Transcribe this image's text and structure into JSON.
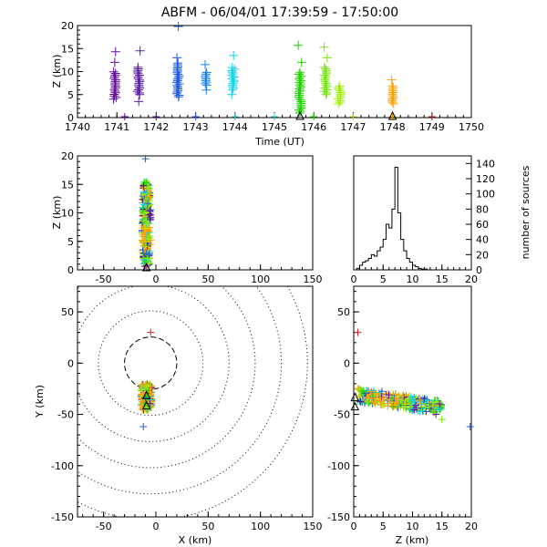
{
  "chart_data": [
    {
      "panel": "time-height",
      "type": "scatter",
      "title": "ABFM - 06/04/01 17:39:59 - 17:50:00",
      "xlabel": "Time (UT)",
      "ylabel": "Z (km)",
      "xlim": [
        1740,
        1750
      ],
      "ylim": [
        0,
        20
      ],
      "xticks": [
        "1740",
        "1741",
        "1742",
        "1743",
        "1744",
        "1745",
        "1746",
        "1747",
        "1748",
        "1749",
        "1750"
      ],
      "yticks": [
        "0",
        "5",
        "10",
        "15",
        "20"
      ],
      "clusters": [
        {
          "t": 1740.95,
          "zmin": 4.0,
          "zmax": 10.0,
          "outliers": [
            14.3,
            12.0
          ],
          "color": "#66119a"
        },
        {
          "t": 1741.55,
          "zmin": 5.0,
          "zmax": 11.0,
          "outliers": [
            14.5,
            3.5
          ],
          "color": "#5a1ea6"
        },
        {
          "t": 1742.55,
          "zmin": 4.5,
          "zmax": 12.0,
          "outliers": [
            19.8,
            13.0
          ],
          "color": "#1e5ae6"
        },
        {
          "t": 1743.25,
          "zmin": 7.0,
          "zmax": 10.0,
          "outliers": [
            11.5,
            6.0
          ],
          "color": "#1e82e6"
        },
        {
          "t": 1743.95,
          "zmin": 6.0,
          "zmax": 11.0,
          "outliers": [
            13.5,
            5.0
          ],
          "color": "#14d2e6"
        },
        {
          "t": 1745.65,
          "zmin": 1.0,
          "zmax": 10.0,
          "outliers": [
            15.7,
            12.0
          ],
          "color": "#1ed200"
        },
        {
          "t": 1746.3,
          "zmin": 5.0,
          "zmax": 11.0,
          "outliers": [
            15.3,
            13.0
          ],
          "color": "#78e614"
        },
        {
          "t": 1746.65,
          "zmin": 3.0,
          "zmax": 7.0,
          "outliers": [],
          "color": "#a0f000"
        },
        {
          "t": 1748.0,
          "zmin": 3.0,
          "zmax": 7.0,
          "outliers": [
            8.2
          ],
          "color": "#ffa000"
        }
      ],
      "ground_marks": [
        {
          "t": 1741.2,
          "color": "#66119a"
        },
        {
          "t": 1742.0,
          "color": "#66119a"
        },
        {
          "t": 1743.0,
          "color": "#1e5ae6"
        },
        {
          "t": 1744.0,
          "color": "#14d2e6"
        },
        {
          "t": 1745.0,
          "color": "#14d2e6"
        },
        {
          "t": 1746.0,
          "color": "#1ed200"
        },
        {
          "t": 1747.0,
          "color": "#a0f000"
        },
        {
          "t": 1748.0,
          "color": "#ffa000"
        },
        {
          "t": 1749.0,
          "color": "#e61e1e"
        }
      ],
      "triangles": [
        1745.65,
        1748.0
      ]
    },
    {
      "panel": "x-z",
      "type": "scatter",
      "xlim": [
        -75,
        150
      ],
      "ylim": [
        0,
        20
      ],
      "ylabel": "Z (km)",
      "xticks": [
        "-50",
        "0",
        "50",
        "100",
        "150"
      ],
      "yticks": [
        "0",
        "5",
        "10",
        "15",
        "20"
      ],
      "center_x": -9,
      "points_summary": "dense vertical column of sources at x ≈ -9 km from z ≈ 0.5 to 16 km, outlier at z ≈ 19.5 km",
      "triangle_x": -9
    },
    {
      "panel": "histogram",
      "type": "bar",
      "ylabel": "number of sources",
      "xlim": [
        0,
        20
      ],
      "ylim": [
        0,
        150
      ],
      "xticks": [
        "0",
        "5",
        "10",
        "15",
        "20"
      ],
      "yticks": [
        "0",
        "20",
        "40",
        "60",
        "80",
        "100",
        "120",
        "140"
      ],
      "bin_width": 0.5,
      "values": [
        0,
        2,
        6,
        10,
        12,
        15,
        20,
        18,
        25,
        30,
        40,
        60,
        55,
        80,
        135,
        75,
        40,
        25,
        15,
        10,
        6,
        4,
        2,
        1,
        1,
        0,
        0,
        0,
        0,
        0,
        0,
        0,
        0,
        0,
        0,
        0,
        0,
        0,
        0,
        0
      ]
    },
    {
      "panel": "plan-view",
      "type": "scatter",
      "xlabel": "X (km)",
      "ylabel": "Y (km)",
      "xlim": [
        -75,
        150
      ],
      "ylim": [
        -150,
        75
      ],
      "xticks": [
        "-50",
        "0",
        "50",
        "100",
        "150"
      ],
      "yticks": [
        "-150",
        "-100",
        "-50",
        "0",
        "50"
      ],
      "range_rings_km": [
        25,
        50,
        75,
        100,
        125,
        150
      ],
      "source_center": [
        -9,
        -33
      ],
      "red_mark": [
        -5,
        30
      ],
      "outlier": [
        -12,
        -62
      ],
      "triangles": [
        [
          -9,
          -32
        ],
        [
          -9,
          -42
        ]
      ]
    },
    {
      "panel": "z-y",
      "type": "scatter",
      "xlabel": "Z (km)",
      "xlim": [
        0,
        20
      ],
      "ylim": [
        -150,
        75
      ],
      "xticks": [
        "0",
        "5",
        "10",
        "15",
        "20"
      ],
      "yticks": [
        "-150",
        "-100",
        "-50",
        "0",
        "50"
      ],
      "red_mark": [
        0.7,
        30
      ],
      "outlier": [
        19.8,
        -62
      ],
      "triangles": [
        [
          0.2,
          -34
        ],
        [
          0.2,
          -43
        ]
      ]
    }
  ],
  "colors": {
    "axis": "#000000",
    "purple": "#66119a",
    "blue": "#1e5ae6",
    "cyan": "#14d2e6",
    "green": "#1ed200",
    "lime": "#a0f000",
    "orange": "#ffa000",
    "red": "#e61e1e"
  }
}
